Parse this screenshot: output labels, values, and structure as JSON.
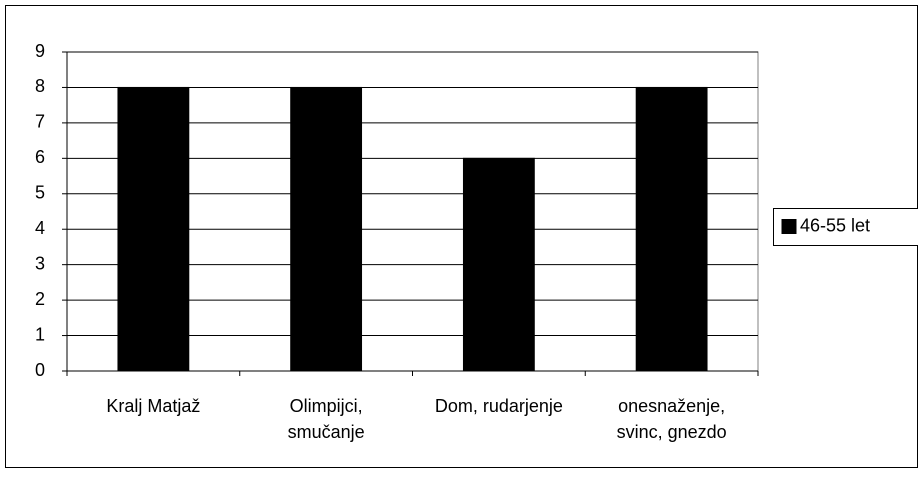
{
  "chart_data": {
    "type": "bar",
    "categories": [
      "Kralj Matjaž",
      "Olimpijci, smučanje",
      "Dom, rudarjenje",
      "onesnaženje, svinc, gnezdo"
    ],
    "series": [
      {
        "name": "46-55 let",
        "color": "#000000",
        "values": [
          8,
          8,
          6,
          8
        ]
      }
    ],
    "ylim": [
      0,
      9
    ],
    "yticks": [
      0,
      1,
      2,
      3,
      4,
      5,
      6,
      7,
      8,
      9
    ],
    "grid": true,
    "legend": "right"
  }
}
